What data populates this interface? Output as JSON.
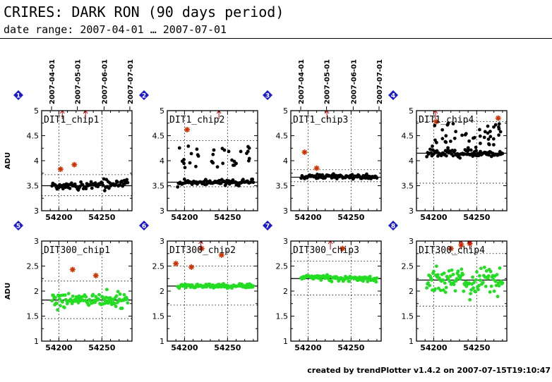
{
  "header": {
    "title": "CRIRES: DARK RON (90 days period)",
    "subtitle": "date range: 2007-04-01 … 2007-07-01"
  },
  "footer": "created by trendPlotter v1.4.2 on 2007-07-15T19:10:47",
  "colors": {
    "index_badge": "#1a1acc",
    "outlier": "#cc3300",
    "arrow": "#cc0000",
    "dark_series": "#000000",
    "green_series": "#22dd22"
  },
  "chart_data": [
    {
      "type": "scatter",
      "index": "1",
      "panel_label": "DIT1_chip1",
      "ylabel": "ADU",
      "xlim": [
        54180,
        54285
      ],
      "ylim": [
        3,
        5
      ],
      "xticks": [
        54200,
        54250
      ],
      "yticks": [
        3,
        3.5,
        4,
        4.5,
        5
      ],
      "ytick_labels": [
        "3",
        "3.5",
        "4",
        "4.5",
        "5"
      ],
      "top_dates": [
        "2007-04-01",
        "2007-05-01",
        "2007-06-01",
        "2007-07-01"
      ],
      "median": 3.5,
      "band": [
        3.3,
        3.72
      ],
      "point_color": "#000000",
      "series": {
        "x_start": 54192,
        "x_end": 54280,
        "n": 90,
        "mean": 3.51,
        "spread": 0.06,
        "trend": 0.1
      },
      "outliers": [
        {
          "x": 54202,
          "y": 3.83
        },
        {
          "x": 54218,
          "y": 3.92
        }
      ],
      "arrows_above": [
        54204,
        54231
      ]
    },
    {
      "type": "scatter",
      "index": "2",
      "panel_label": "DIT1_chip2",
      "ylabel": "",
      "xlim": [
        54180,
        54285
      ],
      "ylim": [
        3,
        5
      ],
      "xticks": [
        54200,
        54250
      ],
      "yticks": [
        3,
        3.5,
        4,
        4.5,
        5
      ],
      "ytick_labels": [
        "3",
        "3.5",
        "4",
        "4.5",
        "5"
      ],
      "top_dates": [],
      "median": 3.57,
      "band": [
        3.48,
        4.4
      ],
      "point_color": "#000000",
      "series": {
        "x_start": 54192,
        "x_end": 54280,
        "n": 90,
        "mean": 3.57,
        "spread": 0.04,
        "trend": 0.03
      },
      "extra_upper": {
        "n": 34,
        "min": 3.85,
        "max": 4.35
      },
      "outliers": [
        {
          "x": 54203,
          "y": 4.62
        }
      ],
      "arrows_above": [
        54240
      ]
    },
    {
      "type": "scatter",
      "index": "3",
      "panel_label": "DIT1_chip3",
      "ylabel": "",
      "xlim": [
        54180,
        54285
      ],
      "ylim": [
        3,
        5
      ],
      "xticks": [
        54200,
        54250
      ],
      "yticks": [
        3,
        3.5,
        4,
        4.5,
        5
      ],
      "ytick_labels": [
        "3",
        "3.5",
        "4",
        "4.5",
        "5"
      ],
      "top_dates": [
        "2007-04-01",
        "2007-05-01",
        "2007-06-01",
        "2007-07-01"
      ],
      "median": 3.67,
      "band": [
        3.58,
        3.82
      ],
      "point_color": "#000000",
      "series": {
        "x_start": 54192,
        "x_end": 54280,
        "n": 90,
        "mean": 3.68,
        "spread": 0.03,
        "trend": 0.0
      },
      "outliers": [
        {
          "x": 54196,
          "y": 4.17
        },
        {
          "x": 54210,
          "y": 3.85
        }
      ],
      "arrows_above": [
        54222
      ]
    },
    {
      "type": "scatter",
      "index": "4",
      "panel_label": "DIT1_chip4",
      "ylabel": "",
      "xlim": [
        54180,
        54285
      ],
      "ylim": [
        3,
        5
      ],
      "xticks": [
        54200,
        54250
      ],
      "yticks": [
        3,
        3.5,
        4,
        4.5,
        5
      ],
      "ytick_labels": [
        "3",
        "3.5",
        "4",
        "4.5",
        "5"
      ],
      "top_dates": [],
      "median": 4.15,
      "band": [
        3.55,
        4.78
      ],
      "point_color": "#000000",
      "series": {
        "x_start": 54192,
        "x_end": 54280,
        "n": 90,
        "mean": 4.15,
        "spread": 0.06,
        "trend": 0.0
      },
      "extra_upper": {
        "n": 45,
        "min": 4.25,
        "max": 4.75
      },
      "outliers": [
        {
          "x": 54203,
          "y": 4.78
        },
        {
          "x": 54275,
          "y": 4.85
        }
      ],
      "arrows_above": [
        54202
      ]
    },
    {
      "type": "scatter",
      "index": "5",
      "panel_label": "DIT300_chip1",
      "ylabel": "ADU",
      "xlim": [
        54180,
        54285
      ],
      "ylim": [
        1,
        3
      ],
      "xticks": [
        54200,
        54250
      ],
      "yticks": [
        1,
        1.5,
        2,
        2.5,
        3
      ],
      "ytick_labels": [
        "1",
        "1.5",
        "2",
        "2.5",
        "3"
      ],
      "top_dates": [],
      "median": 1.82,
      "band": [
        1.45,
        2.2
      ],
      "point_color": "#22dd22",
      "series": {
        "x_start": 54192,
        "x_end": 54280,
        "n": 110,
        "mean": 1.82,
        "spread": 0.1,
        "trend": 0.0
      },
      "outliers": [
        {
          "x": 54216,
          "y": 2.43
        },
        {
          "x": 54243,
          "y": 2.31
        }
      ],
      "arrows_above": []
    },
    {
      "type": "scatter",
      "index": "6",
      "panel_label": "DIT300_chip2",
      "ylabel": "",
      "xlim": [
        54180,
        54285
      ],
      "ylim": [
        1,
        3
      ],
      "xticks": [
        54200,
        54250
      ],
      "yticks": [
        1,
        1.5,
        2,
        2.5,
        3
      ],
      "ytick_labels": [
        "1",
        "1.5",
        "2",
        "2.5",
        "3"
      ],
      "top_dates": [],
      "median": 2.1,
      "band": [
        1.72,
        2.5
      ],
      "point_color": "#22dd22",
      "series": {
        "x_start": 54192,
        "x_end": 54280,
        "n": 100,
        "mean": 2.1,
        "spread": 0.03,
        "trend": 0.0
      },
      "outliers": [
        {
          "x": 54190,
          "y": 2.55
        },
        {
          "x": 54208,
          "y": 2.48
        },
        {
          "x": 54220,
          "y": 2.85
        },
        {
          "x": 54243,
          "y": 2.72
        }
      ],
      "arrows_above": [
        54219
      ]
    },
    {
      "type": "scatter",
      "index": "7",
      "panel_label": "DIT300_chip3",
      "ylabel": "",
      "xlim": [
        54180,
        54285
      ],
      "ylim": [
        1,
        3
      ],
      "xticks": [
        54200,
        54250
      ],
      "yticks": [
        1,
        1.5,
        2,
        2.5,
        3
      ],
      "ytick_labels": [
        "1",
        "1.5",
        "2",
        "2.5",
        "3"
      ],
      "top_dates": [],
      "median": 2.25,
      "band": [
        1.92,
        2.6
      ],
      "point_color": "#22dd22",
      "series": {
        "x_start": 54192,
        "x_end": 54280,
        "n": 100,
        "mean": 2.26,
        "spread": 0.04,
        "trend": -0.05
      },
      "outliers": [
        {
          "x": 54240,
          "y": 2.85
        }
      ],
      "arrows_above": [
        54226
      ]
    },
    {
      "type": "scatter",
      "index": "8",
      "panel_label": "DIT300_chip4",
      "ylabel": "",
      "xlim": [
        54180,
        54285
      ],
      "ylim": [
        1,
        3
      ],
      "xticks": [
        54200,
        54250
      ],
      "yticks": [
        1,
        1.5,
        2,
        2.5,
        3
      ],
      "ytick_labels": [
        "1",
        "1.5",
        "2",
        "2.5",
        "3"
      ],
      "top_dates": [],
      "median": 2.22,
      "band": [
        1.7,
        2.75
      ],
      "point_color": "#22dd22",
      "series": {
        "x_start": 54192,
        "x_end": 54280,
        "n": 110,
        "mean": 2.2,
        "spread": 0.2,
        "trend": 0.0
      },
      "outliers": [
        {
          "x": 54220,
          "y": 2.85
        },
        {
          "x": 54232,
          "y": 2.92
        },
        {
          "x": 54242,
          "y": 2.95
        }
      ],
      "arrows_above": [
        54232,
        54242
      ]
    }
  ]
}
